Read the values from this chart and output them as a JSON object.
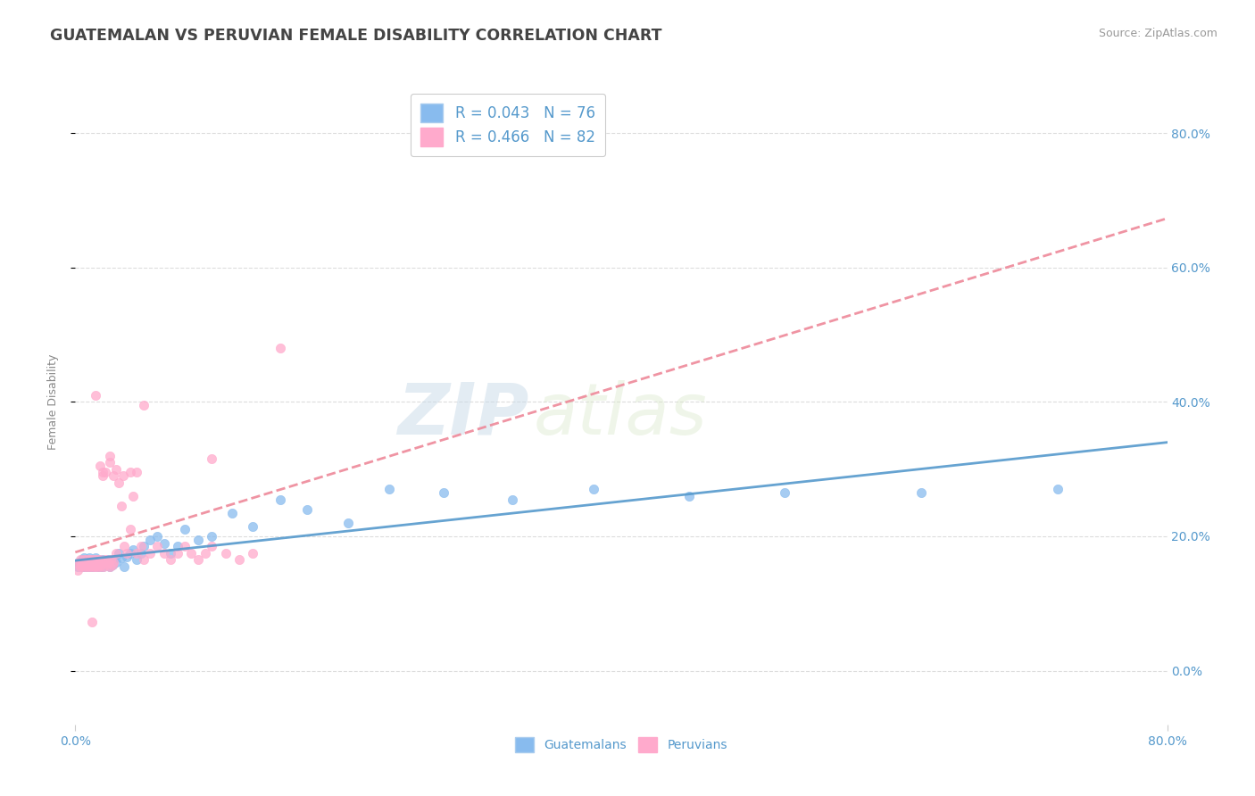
{
  "title": "GUATEMALAN VS PERUVIAN FEMALE DISABILITY CORRELATION CHART",
  "source_text": "Source: ZipAtlas.com",
  "ylabel": "Female Disability",
  "watermark_part1": "ZIP",
  "watermark_part2": "atlas",
  "guatemalan_color": "#88bbee",
  "peruvian_color": "#ffaacc",
  "guatemalan_line_color": "#5599cc",
  "peruvian_line_color": "#ee8899",
  "guatemalans_label": "Guatemalans",
  "peruvians_label": "Peruvians",
  "background_color": "#ffffff",
  "plot_background": "#ffffff",
  "title_color": "#444444",
  "axis_label_color": "#5599cc",
  "tick_color": "#5599cc",
  "legend_text_color": "#5599cc",
  "xmin": 0.0,
  "xmax": 0.8,
  "ymin": -0.08,
  "ymax": 0.88,
  "guatemalan_x": [
    0.002,
    0.003,
    0.004,
    0.004,
    0.005,
    0.005,
    0.006,
    0.006,
    0.007,
    0.007,
    0.008,
    0.008,
    0.009,
    0.009,
    0.01,
    0.01,
    0.011,
    0.011,
    0.012,
    0.012,
    0.013,
    0.013,
    0.014,
    0.014,
    0.015,
    0.015,
    0.016,
    0.016,
    0.017,
    0.017,
    0.018,
    0.018,
    0.019,
    0.019,
    0.02,
    0.02,
    0.021,
    0.022,
    0.023,
    0.024,
    0.025,
    0.025,
    0.026,
    0.027,
    0.028,
    0.03,
    0.032,
    0.034,
    0.036,
    0.038,
    0.04,
    0.042,
    0.045,
    0.048,
    0.05,
    0.055,
    0.06,
    0.065,
    0.07,
    0.075,
    0.08,
    0.09,
    0.1,
    0.115,
    0.13,
    0.15,
    0.17,
    0.2,
    0.23,
    0.27,
    0.32,
    0.38,
    0.45,
    0.52,
    0.62,
    0.72
  ],
  "guatemalan_y": [
    0.155,
    0.16,
    0.162,
    0.158,
    0.155,
    0.165,
    0.16,
    0.168,
    0.155,
    0.162,
    0.158,
    0.165,
    0.16,
    0.155,
    0.162,
    0.168,
    0.155,
    0.16,
    0.162,
    0.158,
    0.165,
    0.155,
    0.162,
    0.158,
    0.16,
    0.168,
    0.155,
    0.162,
    0.158,
    0.165,
    0.16,
    0.155,
    0.162,
    0.158,
    0.165,
    0.155,
    0.162,
    0.16,
    0.158,
    0.165,
    0.162,
    0.155,
    0.16,
    0.158,
    0.165,
    0.162,
    0.175,
    0.168,
    0.155,
    0.17,
    0.175,
    0.18,
    0.165,
    0.175,
    0.185,
    0.195,
    0.2,
    0.19,
    0.175,
    0.185,
    0.21,
    0.195,
    0.2,
    0.235,
    0.215,
    0.255,
    0.24,
    0.22,
    0.27,
    0.265,
    0.255,
    0.27,
    0.26,
    0.265,
    0.265,
    0.27
  ],
  "peruvian_x": [
    0.002,
    0.003,
    0.003,
    0.004,
    0.004,
    0.005,
    0.005,
    0.006,
    0.006,
    0.007,
    0.007,
    0.008,
    0.008,
    0.009,
    0.009,
    0.01,
    0.01,
    0.011,
    0.011,
    0.012,
    0.012,
    0.013,
    0.013,
    0.014,
    0.014,
    0.015,
    0.015,
    0.016,
    0.016,
    0.017,
    0.017,
    0.018,
    0.018,
    0.019,
    0.02,
    0.021,
    0.022,
    0.023,
    0.024,
    0.025,
    0.026,
    0.027,
    0.028,
    0.03,
    0.032,
    0.034,
    0.036,
    0.038,
    0.04,
    0.042,
    0.045,
    0.048,
    0.05,
    0.055,
    0.06,
    0.065,
    0.07,
    0.075,
    0.08,
    0.085,
    0.09,
    0.095,
    0.1,
    0.11,
    0.12,
    0.13,
    0.05,
    0.1,
    0.15,
    0.025,
    0.03,
    0.02,
    0.015,
    0.025,
    0.02,
    0.018,
    0.022,
    0.028,
    0.035,
    0.04,
    0.045,
    0.012
  ],
  "peruvian_y": [
    0.15,
    0.158,
    0.162,
    0.155,
    0.165,
    0.158,
    0.162,
    0.155,
    0.165,
    0.158,
    0.162,
    0.155,
    0.165,
    0.158,
    0.162,
    0.155,
    0.165,
    0.158,
    0.162,
    0.155,
    0.165,
    0.158,
    0.162,
    0.155,
    0.165,
    0.158,
    0.162,
    0.155,
    0.165,
    0.158,
    0.162,
    0.155,
    0.165,
    0.158,
    0.162,
    0.155,
    0.165,
    0.158,
    0.162,
    0.155,
    0.165,
    0.158,
    0.162,
    0.175,
    0.28,
    0.245,
    0.185,
    0.175,
    0.21,
    0.26,
    0.175,
    0.185,
    0.165,
    0.175,
    0.185,
    0.175,
    0.165,
    0.175,
    0.185,
    0.175,
    0.165,
    0.175,
    0.185,
    0.175,
    0.165,
    0.175,
    0.395,
    0.315,
    0.48,
    0.31,
    0.3,
    0.29,
    0.41,
    0.32,
    0.295,
    0.305,
    0.295,
    0.29,
    0.29,
    0.295,
    0.295,
    0.072
  ],
  "ytick_vals": [
    0.0,
    0.2,
    0.4,
    0.6,
    0.8
  ],
  "ytick_labels": [
    "0.0%",
    "20.0%",
    "40.0%",
    "60.0%",
    "80.0%"
  ]
}
